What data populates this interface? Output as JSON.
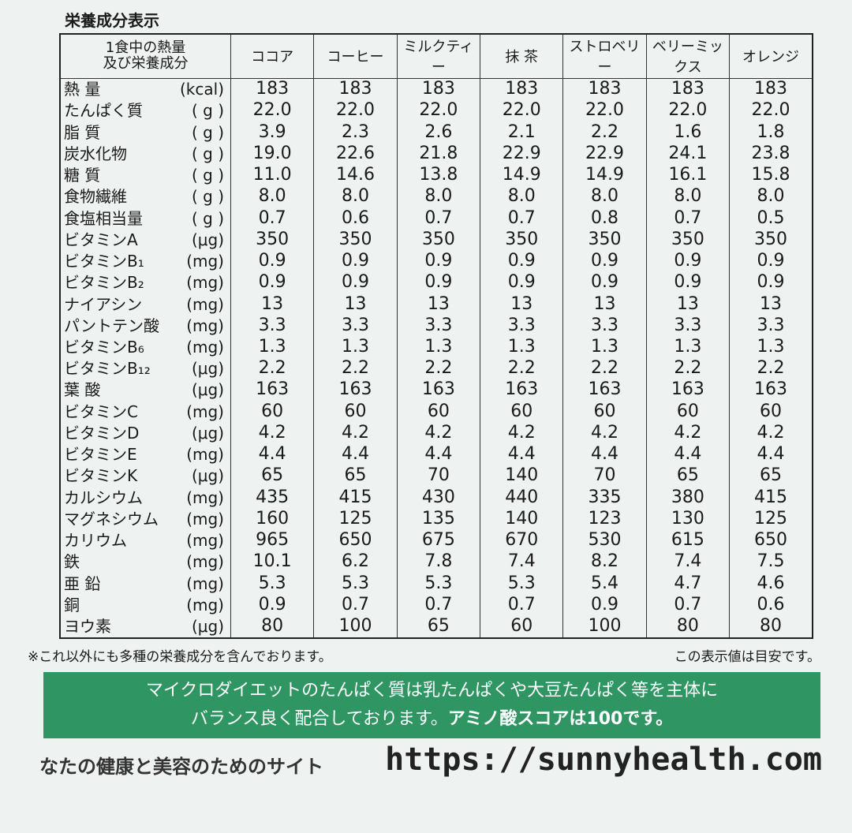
{
  "header": {
    "title": "栄養成分表示"
  },
  "table": {
    "corner": [
      "1食中の熱量",
      "及び栄養成分"
    ],
    "columns": [
      "ココア",
      "コーヒー",
      "ミルクティー",
      "抹 茶",
      "ストロベリー",
      "ベリーミックス",
      "オレンジ"
    ],
    "rows": [
      {
        "name": "熱 量",
        "unit": "(kcal)",
        "values": [
          "183",
          "183",
          "183",
          "183",
          "183",
          "183",
          "183"
        ]
      },
      {
        "name": "たんぱく質",
        "unit": "( g )",
        "values": [
          "22.0",
          "22.0",
          "22.0",
          "22.0",
          "22.0",
          "22.0",
          "22.0"
        ]
      },
      {
        "name": "脂 質",
        "unit": "( g )",
        "values": [
          "3.9",
          "2.3",
          "2.6",
          "2.1",
          "2.2",
          "1.6",
          "1.8"
        ]
      },
      {
        "name": "炭水化物",
        "unit": "( g )",
        "values": [
          "19.0",
          "22.6",
          "21.8",
          "22.9",
          "22.9",
          "24.1",
          "23.8"
        ]
      },
      {
        "name": "糖 質",
        "unit": "( g )",
        "values": [
          "11.0",
          "14.6",
          "13.8",
          "14.9",
          "14.9",
          "16.1",
          "15.8"
        ]
      },
      {
        "name": "食物繊維",
        "unit": "( g )",
        "values": [
          "8.0",
          "8.0",
          "8.0",
          "8.0",
          "8.0",
          "8.0",
          "8.0"
        ]
      },
      {
        "name": "食塩相当量",
        "unit": "( g )",
        "values": [
          "0.7",
          "0.6",
          "0.7",
          "0.7",
          "0.8",
          "0.7",
          "0.5"
        ]
      },
      {
        "name": "ビタミンA",
        "unit": "(μg)",
        "values": [
          "350",
          "350",
          "350",
          "350",
          "350",
          "350",
          "350"
        ]
      },
      {
        "name": "ビタミンB₁",
        "unit": "(mg)",
        "values": [
          "0.9",
          "0.9",
          "0.9",
          "0.9",
          "0.9",
          "0.9",
          "0.9"
        ]
      },
      {
        "name": "ビタミンB₂",
        "unit": "(mg)",
        "values": [
          "0.9",
          "0.9",
          "0.9",
          "0.9",
          "0.9",
          "0.9",
          "0.9"
        ]
      },
      {
        "name": "ナイアシン",
        "unit": "(mg)",
        "values": [
          "13",
          "13",
          "13",
          "13",
          "13",
          "13",
          "13"
        ]
      },
      {
        "name": "パントテン酸",
        "unit": "(mg)",
        "values": [
          "3.3",
          "3.3",
          "3.3",
          "3.3",
          "3.3",
          "3.3",
          "3.3"
        ]
      },
      {
        "name": "ビタミンB₆",
        "unit": "(mg)",
        "values": [
          "1.3",
          "1.3",
          "1.3",
          "1.3",
          "1.3",
          "1.3",
          "1.3"
        ]
      },
      {
        "name": "ビタミンB₁₂",
        "unit": "(μg)",
        "values": [
          "2.2",
          "2.2",
          "2.2",
          "2.2",
          "2.2",
          "2.2",
          "2.2"
        ]
      },
      {
        "name": "葉 酸",
        "unit": "(μg)",
        "values": [
          "163",
          "163",
          "163",
          "163",
          "163",
          "163",
          "163"
        ]
      },
      {
        "name": "ビタミンC",
        "unit": "(mg)",
        "values": [
          "60",
          "60",
          "60",
          "60",
          "60",
          "60",
          "60"
        ]
      },
      {
        "name": "ビタミンD",
        "unit": "(μg)",
        "values": [
          "4.2",
          "4.2",
          "4.2",
          "4.2",
          "4.2",
          "4.2",
          "4.2"
        ]
      },
      {
        "name": "ビタミンE",
        "unit": "(mg)",
        "values": [
          "4.4",
          "4.4",
          "4.4",
          "4.4",
          "4.4",
          "4.4",
          "4.4"
        ]
      },
      {
        "name": "ビタミンK",
        "unit": "(μg)",
        "values": [
          "65",
          "65",
          "70",
          "140",
          "70",
          "65",
          "65"
        ]
      },
      {
        "name": "カルシウム",
        "unit": "(mg)",
        "values": [
          "435",
          "415",
          "430",
          "440",
          "335",
          "380",
          "415"
        ]
      },
      {
        "name": "マグネシウム",
        "unit": "(mg)",
        "values": [
          "160",
          "125",
          "135",
          "140",
          "123",
          "130",
          "125"
        ]
      },
      {
        "name": "カリウム",
        "unit": "(mg)",
        "values": [
          "965",
          "650",
          "675",
          "670",
          "530",
          "615",
          "650"
        ]
      },
      {
        "name": "鉄",
        "unit": "(mg)",
        "values": [
          "10.1",
          "6.2",
          "7.8",
          "7.4",
          "8.2",
          "7.4",
          "7.5"
        ]
      },
      {
        "name": "亜 鉛",
        "unit": "(mg)",
        "values": [
          "5.3",
          "5.3",
          "5.3",
          "5.3",
          "5.4",
          "4.7",
          "4.6"
        ]
      },
      {
        "name": "銅",
        "unit": "(mg)",
        "values": [
          "0.9",
          "0.7",
          "0.7",
          "0.7",
          "0.9",
          "0.7",
          "0.6"
        ]
      },
      {
        "name": "ヨウ素",
        "unit": "(μg)",
        "values": [
          "80",
          "100",
          "65",
          "60",
          "100",
          "80",
          "80"
        ]
      }
    ]
  },
  "notes": {
    "left": "※これ以外にも多種の栄養成分を含んでおります。",
    "right": "この表示値は目安です。"
  },
  "banner": {
    "line1": "マイクロダイエットのたんぱく質は乳たんぱくや大豆たんぱく等を主体に",
    "line2": "バランス良く配合しております。",
    "line2_bold": "アミノ酸スコアは100です。"
  },
  "footer": {
    "tagline": "なたの健康と美容のためのサイト",
    "url": "https://sunnyhealth.com"
  }
}
